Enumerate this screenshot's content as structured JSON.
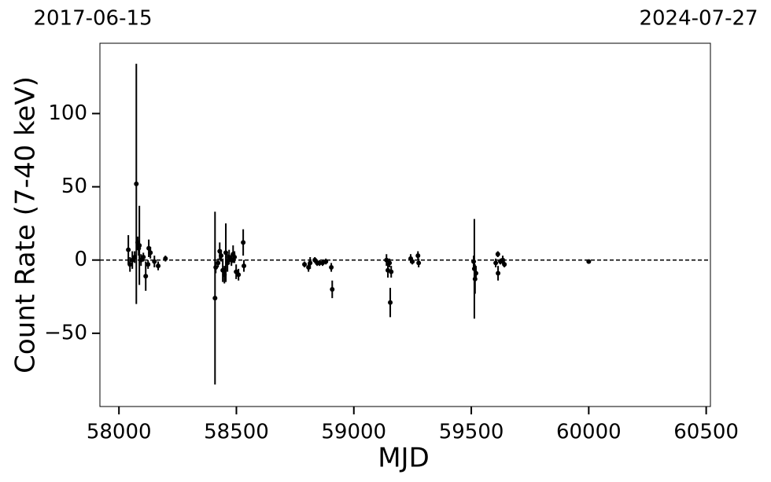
{
  "chart_data": {
    "type": "scatter",
    "top_left_label": "2017-06-15",
    "top_right_label": "2024-07-27",
    "xlabel": "MJD",
    "ylabel": "Count Rate (7-40 keV)",
    "xlim": [
      57919,
      60518
    ],
    "ylim": [
      -100,
      148
    ],
    "xticks": [
      58000,
      58500,
      59000,
      59500,
      60000,
      60500
    ],
    "yticks": [
      {
        "value": -50,
        "label": "−50"
      },
      0,
      50,
      100
    ],
    "hline": 0,
    "x": [
      58040,
      58047,
      58057,
      58067,
      58074,
      58080,
      58084,
      58087,
      58094,
      58104,
      58114,
      58124,
      58127,
      58134,
      58151,
      58167,
      58198,
      58409,
      58412,
      58422,
      58429,
      58435,
      58442,
      58449,
      58455,
      58462,
      58469,
      58479,
      58486,
      58492,
      58499,
      58509,
      58529,
      58532,
      58790,
      58807,
      58814,
      58834,
      58844,
      58854,
      58867,
      58881,
      58904,
      58908,
      59139,
      59145,
      59152,
      59155,
      59159,
      59242,
      59249,
      59273,
      59276,
      59510,
      59513,
      59516,
      59520,
      59604,
      59613,
      59614,
      59624,
      59634,
      59641,
      60000
    ],
    "series": [
      {
        "color": "#000000",
        "values": [
          7,
          -3,
          0,
          2,
          52,
          12,
          8,
          10,
          0,
          2,
          -11,
          -3,
          8,
          5,
          -1,
          -4,
          1,
          -26,
          -5,
          -2,
          6,
          3,
          -7,
          -10,
          5,
          -2,
          2,
          0,
          4,
          2,
          -8,
          -10,
          12,
          -4,
          -3,
          -5,
          -2,
          0,
          -2,
          -2,
          -2,
          -1,
          -5,
          -20,
          0,
          -7,
          -2,
          -29,
          -8,
          1,
          -1,
          3,
          -2,
          -1,
          -6,
          -13,
          -9,
          -2,
          4,
          -9,
          -1,
          0,
          -3,
          -1
        ],
        "errors": [
          10,
          5,
          6,
          4,
          82,
          4,
          5,
          27,
          4,
          3,
          10,
          3,
          6,
          4,
          4,
          3,
          2,
          59,
          4,
          3,
          6,
          4,
          8,
          6,
          20,
          6,
          5,
          4,
          6,
          4,
          5,
          4,
          9,
          4,
          2,
          3,
          4,
          2,
          2,
          2,
          2,
          2,
          3,
          6,
          4,
          5,
          3,
          10,
          4,
          3,
          2,
          3,
          3,
          4,
          34,
          10,
          5,
          3,
          2,
          5,
          2,
          3,
          2,
          1
        ]
      }
    ]
  }
}
